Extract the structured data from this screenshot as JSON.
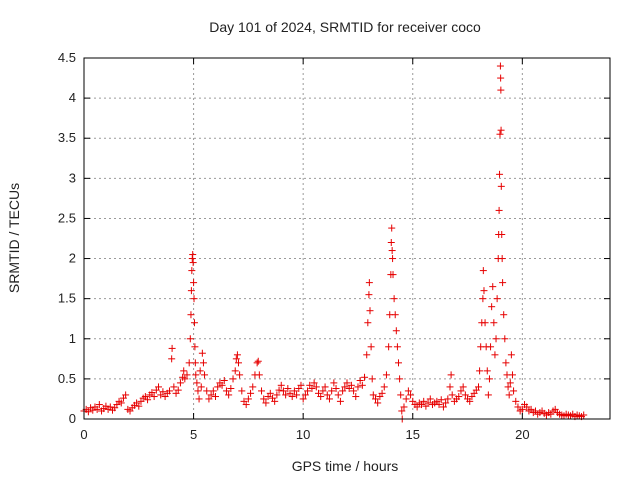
{
  "chart_data": {
    "type": "scatter",
    "title": "Day 101 of 2024, SRMTID for receiver coco",
    "xlabel": "GPS time / hours",
    "ylabel": "SRMTID / TECUs",
    "xlim": [
      0,
      24
    ],
    "ylim": [
      0,
      4.5
    ],
    "xticks": [
      0,
      5,
      10,
      15,
      20
    ],
    "xtick_labels": [
      "0",
      "5",
      "10",
      "15",
      "20"
    ],
    "yticks": [
      0,
      0.5,
      1,
      1.5,
      2,
      2.5,
      3,
      3.5,
      4,
      4.5
    ],
    "ytick_labels": [
      "0",
      "0.5",
      "1",
      "1.5",
      "2",
      "2.5",
      "3",
      "3.5",
      "4",
      "4.5"
    ],
    "grid": true,
    "marker": "+",
    "marker_color": "#e60000",
    "series": [
      {
        "name": "SRMTID",
        "points": [
          [
            0.0,
            0.1
          ],
          [
            0.1,
            0.12
          ],
          [
            0.2,
            0.09
          ],
          [
            0.3,
            0.14
          ],
          [
            0.4,
            0.11
          ],
          [
            0.5,
            0.15
          ],
          [
            0.6,
            0.12
          ],
          [
            0.7,
            0.18
          ],
          [
            0.8,
            0.1
          ],
          [
            0.9,
            0.13
          ],
          [
            1.0,
            0.16
          ],
          [
            1.1,
            0.12
          ],
          [
            1.2,
            0.15
          ],
          [
            1.3,
            0.11
          ],
          [
            1.4,
            0.14
          ],
          [
            1.5,
            0.18
          ],
          [
            1.6,
            0.22
          ],
          [
            1.7,
            0.2
          ],
          [
            1.8,
            0.26
          ],
          [
            1.9,
            0.3
          ],
          [
            2.0,
            0.12
          ],
          [
            2.1,
            0.1
          ],
          [
            2.2,
            0.14
          ],
          [
            2.3,
            0.17
          ],
          [
            2.4,
            0.2
          ],
          [
            2.5,
            0.16
          ],
          [
            2.6,
            0.22
          ],
          [
            2.7,
            0.26
          ],
          [
            2.8,
            0.28
          ],
          [
            2.9,
            0.24
          ],
          [
            3.0,
            0.3
          ],
          [
            3.1,
            0.33
          ],
          [
            3.2,
            0.28
          ],
          [
            3.3,
            0.36
          ],
          [
            3.4,
            0.4
          ],
          [
            3.5,
            0.3
          ],
          [
            3.6,
            0.34
          ],
          [
            3.7,
            0.28
          ],
          [
            3.8,
            0.32
          ],
          [
            3.9,
            0.35
          ],
          [
            4.0,
            0.75
          ],
          [
            4.02,
            0.88
          ],
          [
            4.1,
            0.4
          ],
          [
            4.2,
            0.32
          ],
          [
            4.3,
            0.36
          ],
          [
            4.4,
            0.45
          ],
          [
            4.5,
            0.52
          ],
          [
            4.55,
            0.6
          ],
          [
            4.6,
            0.5
          ],
          [
            4.7,
            0.55
          ],
          [
            4.8,
            0.7
          ],
          [
            4.85,
            1.0
          ],
          [
            4.88,
            1.3
          ],
          [
            4.9,
            1.6
          ],
          [
            4.92,
            1.85
          ],
          [
            4.94,
            2.0
          ],
          [
            4.96,
            2.05
          ],
          [
            4.98,
            1.95
          ],
          [
            5.0,
            1.7
          ],
          [
            5.02,
            1.5
          ],
          [
            5.04,
            1.2
          ],
          [
            5.06,
            0.9
          ],
          [
            5.08,
            0.7
          ],
          [
            5.1,
            0.55
          ],
          [
            5.15,
            0.45
          ],
          [
            5.2,
            0.35
          ],
          [
            5.25,
            0.25
          ],
          [
            5.3,
            0.6
          ],
          [
            5.35,
            0.4
          ],
          [
            5.4,
            0.82
          ],
          [
            5.45,
            0.7
          ],
          [
            5.5,
            0.55
          ],
          [
            5.6,
            0.35
          ],
          [
            5.7,
            0.25
          ],
          [
            5.8,
            0.3
          ],
          [
            5.9,
            0.35
          ],
          [
            6.0,
            0.28
          ],
          [
            6.1,
            0.4
          ],
          [
            6.2,
            0.45
          ],
          [
            6.3,
            0.42
          ],
          [
            6.4,
            0.48
          ],
          [
            6.5,
            0.35
          ],
          [
            6.6,
            0.3
          ],
          [
            6.7,
            0.38
          ],
          [
            6.8,
            0.5
          ],
          [
            6.9,
            0.6
          ],
          [
            6.95,
            0.75
          ],
          [
            7.0,
            0.8
          ],
          [
            7.05,
            0.7
          ],
          [
            7.1,
            0.55
          ],
          [
            7.2,
            0.35
          ],
          [
            7.3,
            0.22
          ],
          [
            7.4,
            0.18
          ],
          [
            7.5,
            0.25
          ],
          [
            7.6,
            0.32
          ],
          [
            7.7,
            0.4
          ],
          [
            7.8,
            0.55
          ],
          [
            7.9,
            0.7
          ],
          [
            7.95,
            0.72
          ],
          [
            8.0,
            0.55
          ],
          [
            8.1,
            0.35
          ],
          [
            8.2,
            0.25
          ],
          [
            8.3,
            0.2
          ],
          [
            8.4,
            0.28
          ],
          [
            8.5,
            0.32
          ],
          [
            8.6,
            0.26
          ],
          [
            8.7,
            0.22
          ],
          [
            8.8,
            0.3
          ],
          [
            8.9,
            0.36
          ],
          [
            9.0,
            0.42
          ],
          [
            9.1,
            0.35
          ],
          [
            9.2,
            0.3
          ],
          [
            9.3,
            0.38
          ],
          [
            9.4,
            0.32
          ],
          [
            9.5,
            0.28
          ],
          [
            9.6,
            0.35
          ],
          [
            9.7,
            0.3
          ],
          [
            9.8,
            0.38
          ],
          [
            9.9,
            0.42
          ],
          [
            10.0,
            0.25
          ],
          [
            10.1,
            0.3
          ],
          [
            10.2,
            0.35
          ],
          [
            10.3,
            0.42
          ],
          [
            10.4,
            0.38
          ],
          [
            10.5,
            0.45
          ],
          [
            10.6,
            0.4
          ],
          [
            10.7,
            0.32
          ],
          [
            10.8,
            0.28
          ],
          [
            10.9,
            0.35
          ],
          [
            11.0,
            0.4
          ],
          [
            11.1,
            0.3
          ],
          [
            11.2,
            0.25
          ],
          [
            11.3,
            0.35
          ],
          [
            11.4,
            0.45
          ],
          [
            11.5,
            0.38
          ],
          [
            11.6,
            0.3
          ],
          [
            11.7,
            0.22
          ],
          [
            11.8,
            0.35
          ],
          [
            11.9,
            0.4
          ],
          [
            12.0,
            0.45
          ],
          [
            12.1,
            0.38
          ],
          [
            12.2,
            0.42
          ],
          [
            12.3,
            0.35
          ],
          [
            12.4,
            0.28
          ],
          [
            12.5,
            0.4
          ],
          [
            12.6,
            0.48
          ],
          [
            12.7,
            0.42
          ],
          [
            12.8,
            0.52
          ],
          [
            12.9,
            0.8
          ],
          [
            12.95,
            1.2
          ],
          [
            13.0,
            1.55
          ],
          [
            13.02,
            1.7
          ],
          [
            13.05,
            1.35
          ],
          [
            13.1,
            0.9
          ],
          [
            13.15,
            0.5
          ],
          [
            13.2,
            0.3
          ],
          [
            13.3,
            0.25
          ],
          [
            13.4,
            0.2
          ],
          [
            13.5,
            0.28
          ],
          [
            13.6,
            0.32
          ],
          [
            13.7,
            0.4
          ],
          [
            13.8,
            0.55
          ],
          [
            13.9,
            0.9
          ],
          [
            13.95,
            1.3
          ],
          [
            14.0,
            1.8
          ],
          [
            14.02,
            2.2
          ],
          [
            14.04,
            2.38
          ],
          [
            14.06,
            2.1
          ],
          [
            14.08,
            2.0
          ],
          [
            14.1,
            1.8
          ],
          [
            14.15,
            1.5
          ],
          [
            14.2,
            1.3
          ],
          [
            14.25,
            1.1
          ],
          [
            14.3,
            0.9
          ],
          [
            14.35,
            0.7
          ],
          [
            14.4,
            0.5
          ],
          [
            14.45,
            0.3
          ],
          [
            14.5,
            0.1
          ],
          [
            14.52,
            0.0
          ],
          [
            14.6,
            0.15
          ],
          [
            14.7,
            0.25
          ],
          [
            14.8,
            0.35
          ],
          [
            14.9,
            0.3
          ],
          [
            15.0,
            0.22
          ],
          [
            15.1,
            0.18
          ],
          [
            15.2,
            0.15
          ],
          [
            15.3,
            0.2
          ],
          [
            15.4,
            0.18
          ],
          [
            15.5,
            0.22
          ],
          [
            15.6,
            0.16
          ],
          [
            15.7,
            0.2
          ],
          [
            15.8,
            0.25
          ],
          [
            15.9,
            0.18
          ],
          [
            16.0,
            0.2
          ],
          [
            16.1,
            0.22
          ],
          [
            16.2,
            0.18
          ],
          [
            16.3,
            0.24
          ],
          [
            16.4,
            0.15
          ],
          [
            16.5,
            0.2
          ],
          [
            16.6,
            0.25
          ],
          [
            16.7,
            0.4
          ],
          [
            16.75,
            0.55
          ],
          [
            16.8,
            0.3
          ],
          [
            16.9,
            0.22
          ],
          [
            17.0,
            0.25
          ],
          [
            17.1,
            0.28
          ],
          [
            17.2,
            0.35
          ],
          [
            17.3,
            0.4
          ],
          [
            17.4,
            0.3
          ],
          [
            17.5,
            0.25
          ],
          [
            17.6,
            0.22
          ],
          [
            17.7,
            0.28
          ],
          [
            17.8,
            0.32
          ],
          [
            17.9,
            0.36
          ],
          [
            18.0,
            0.4
          ],
          [
            18.05,
            0.6
          ],
          [
            18.1,
            0.9
          ],
          [
            18.15,
            1.2
          ],
          [
            18.2,
            1.5
          ],
          [
            18.22,
            1.85
          ],
          [
            18.25,
            1.6
          ],
          [
            18.3,
            1.2
          ],
          [
            18.35,
            0.9
          ],
          [
            18.4,
            0.6
          ],
          [
            18.45,
            0.3
          ],
          [
            18.5,
            0.5
          ],
          [
            18.55,
            0.9
          ],
          [
            18.6,
            1.4
          ],
          [
            18.65,
            1.65
          ],
          [
            18.7,
            1.2
          ],
          [
            18.75,
            0.8
          ],
          [
            18.8,
            1.0
          ],
          [
            18.85,
            1.5
          ],
          [
            18.9,
            2.0
          ],
          [
            18.92,
            2.3
          ],
          [
            18.94,
            2.6
          ],
          [
            18.96,
            3.05
          ],
          [
            18.98,
            3.55
          ],
          [
            19.0,
            4.4
          ],
          [
            19.01,
            4.25
          ],
          [
            19.02,
            4.1
          ],
          [
            19.03,
            3.6
          ],
          [
            19.04,
            2.9
          ],
          [
            19.06,
            2.3
          ],
          [
            19.08,
            2.0
          ],
          [
            19.1,
            1.7
          ],
          [
            19.15,
            1.3
          ],
          [
            19.2,
            1.0
          ],
          [
            19.25,
            0.7
          ],
          [
            19.3,
            0.55
          ],
          [
            19.35,
            0.4
          ],
          [
            19.4,
            0.3
          ],
          [
            19.45,
            0.45
          ],
          [
            19.5,
            0.8
          ],
          [
            19.55,
            0.55
          ],
          [
            19.6,
            0.35
          ],
          [
            19.7,
            0.22
          ],
          [
            19.8,
            0.15
          ],
          [
            19.9,
            0.1
          ],
          [
            20.0,
            0.12
          ],
          [
            20.1,
            0.18
          ],
          [
            20.2,
            0.15
          ],
          [
            20.3,
            0.1
          ],
          [
            20.4,
            0.12
          ],
          [
            20.5,
            0.08
          ],
          [
            20.6,
            0.1
          ],
          [
            20.7,
            0.06
          ],
          [
            20.8,
            0.08
          ],
          [
            20.9,
            0.1
          ],
          [
            21.0,
            0.07
          ],
          [
            21.1,
            0.05
          ],
          [
            21.2,
            0.08
          ],
          [
            21.3,
            0.06
          ],
          [
            21.4,
            0.1
          ],
          [
            21.5,
            0.12
          ],
          [
            21.6,
            0.08
          ],
          [
            21.7,
            0.06
          ],
          [
            21.8,
            0.05
          ],
          [
            21.9,
            0.04
          ],
          [
            22.0,
            0.06
          ],
          [
            22.1,
            0.05
          ],
          [
            22.2,
            0.04
          ],
          [
            22.3,
            0.06
          ],
          [
            22.4,
            0.03
          ],
          [
            22.5,
            0.05
          ],
          [
            22.6,
            0.04
          ],
          [
            22.7,
            0.03
          ],
          [
            22.8,
            0.05
          ]
        ]
      }
    ]
  }
}
